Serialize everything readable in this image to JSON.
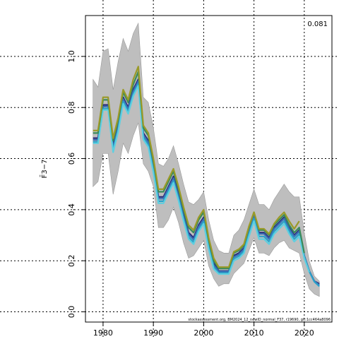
{
  "chart_data": {
    "type": "line",
    "ylabel": "F̄3−7",
    "xlim": [
      1976.5,
      2025.5
    ],
    "ylim": [
      -0.04,
      1.16
    ],
    "x_ticks": [
      1980,
      1990,
      2000,
      2010,
      2020
    ],
    "y_ticks": [
      0.0,
      0.2,
      0.4,
      0.6,
      0.8,
      1.0
    ],
    "x_tick_labels": [
      "1980",
      "1990",
      "2000",
      "2010",
      "2020"
    ],
    "y_tick_labels": [
      "0.0",
      "0.2",
      "0.4",
      "0.6",
      "0.8",
      "1.0"
    ],
    "grid": true,
    "corner_text": "0.081",
    "footnote": "stockassessment.org, BM2024_12_newID_normal_F37, r19690, git:1cc464a8096",
    "band": {
      "color": "#bebebe",
      "x": [
        1978,
        1979,
        1980,
        1981,
        1982,
        1983,
        1984,
        1985,
        1986,
        1987,
        1988,
        1989,
        1990,
        1991,
        1992,
        1993,
        1994,
        1995,
        1996,
        1997,
        1998,
        1999,
        2000,
        2001,
        2002,
        2003,
        2004,
        2005,
        2006,
        2007,
        2008,
        2009,
        2010,
        2011,
        2012,
        2013,
        2014,
        2015,
        2016,
        2017,
        2018,
        2019,
        2020,
        2021,
        2022,
        2023
      ],
      "upper": [
        0.91,
        0.88,
        1.02,
        1.03,
        0.87,
        0.98,
        1.07,
        1.02,
        1.09,
        1.13,
        0.84,
        0.82,
        0.72,
        0.58,
        0.57,
        0.6,
        0.65,
        0.58,
        0.5,
        0.43,
        0.42,
        0.44,
        0.47,
        0.36,
        0.28,
        0.24,
        0.23,
        0.23,
        0.3,
        0.32,
        0.36,
        0.42,
        0.48,
        0.42,
        0.42,
        0.4,
        0.44,
        0.47,
        0.5,
        0.47,
        0.45,
        0.45,
        0.31,
        0.2,
        0.14,
        0.12
      ],
      "lower": [
        0.49,
        0.51,
        0.62,
        0.62,
        0.46,
        0.55,
        0.66,
        0.62,
        0.69,
        0.74,
        0.58,
        0.55,
        0.49,
        0.33,
        0.33,
        0.36,
        0.41,
        0.35,
        0.27,
        0.21,
        0.22,
        0.25,
        0.28,
        0.18,
        0.13,
        0.1,
        0.11,
        0.11,
        0.15,
        0.17,
        0.19,
        0.24,
        0.29,
        0.23,
        0.23,
        0.22,
        0.25,
        0.27,
        0.28,
        0.25,
        0.24,
        0.23,
        0.15,
        0.09,
        0.07,
        0.06
      ]
    },
    "series": [
      {
        "color": "#282878",
        "x": [
          1978,
          1979,
          1980,
          1981,
          1982,
          1983,
          1984,
          1985,
          1986,
          1987,
          1988,
          1989,
          1990,
          1991,
          1992,
          1993,
          1994,
          1995,
          1996,
          1997,
          1998,
          1999,
          2000,
          2001,
          2002,
          2003,
          2004,
          2005,
          2006,
          2007,
          2008,
          2009,
          2010,
          2011,
          2012,
          2013,
          2014,
          2015,
          2016,
          2017,
          2018,
          2019,
          2020,
          2021,
          2022,
          2023
        ],
        "y": [
          0.68,
          0.68,
          0.81,
          0.81,
          0.65,
          0.73,
          0.84,
          0.8,
          0.87,
          0.91,
          0.7,
          0.67,
          0.57,
          0.45,
          0.45,
          0.49,
          0.53,
          0.46,
          0.38,
          0.31,
          0.29,
          0.34,
          0.37,
          0.27,
          0.19,
          0.16,
          0.16,
          0.16,
          0.22,
          0.23,
          0.25,
          0.32,
          0.38,
          0.31,
          0.31,
          0.29,
          0.33,
          0.35,
          0.37,
          0.33,
          0.3,
          0.32,
          0.22,
          0.16,
          0.12,
          0.11
        ]
      },
      {
        "color": "#3b70b5",
        "x": [
          1978,
          1979,
          1980,
          1981,
          1982,
          1983,
          1984,
          1985,
          1986,
          1987,
          1988,
          1989,
          1990,
          1991,
          1992,
          1993,
          1994,
          1995,
          1996,
          1997,
          1998,
          1999,
          2000,
          2001,
          2002,
          2003,
          2004,
          2005,
          2006,
          2007,
          2008,
          2009,
          2010,
          2011,
          2012,
          2013,
          2014,
          2015,
          2016,
          2017,
          2018,
          2019,
          2020,
          2021,
          2022,
          2023
        ],
        "y": [
          0.673,
          0.673,
          0.803,
          0.805,
          0.643,
          0.723,
          0.833,
          0.793,
          0.863,
          0.903,
          0.693,
          0.663,
          0.563,
          0.443,
          0.443,
          0.483,
          0.523,
          0.453,
          0.373,
          0.303,
          0.283,
          0.333,
          0.363,
          0.263,
          0.183,
          0.158,
          0.158,
          0.158,
          0.215,
          0.225,
          0.245,
          0.315,
          0.375,
          0.305,
          0.305,
          0.285,
          0.325,
          0.345,
          0.365,
          0.325,
          0.295,
          0.315,
          0.22,
          0.16,
          0.12,
          0.105
        ]
      },
      {
        "color": "#2aa1c9",
        "x": [
          1978,
          1979,
          1980,
          1981,
          1982,
          1983,
          1984,
          1985,
          1986,
          1987,
          1988,
          1989,
          1990,
          1991,
          1992,
          1993,
          1994,
          1995,
          1996,
          1997,
          1998,
          1999,
          2000,
          2001,
          2002,
          2003,
          2004,
          2005,
          2006,
          2007,
          2008,
          2009,
          2010,
          2011,
          2012,
          2013,
          2014,
          2015,
          2016,
          2017,
          2018,
          2019,
          2020,
          2021,
          2022,
          2023
        ],
        "y": [
          0.665,
          0.665,
          0.795,
          0.797,
          0.633,
          0.713,
          0.823,
          0.783,
          0.853,
          0.893,
          0.683,
          0.653,
          0.553,
          0.433,
          0.433,
          0.473,
          0.513,
          0.443,
          0.363,
          0.293,
          0.273,
          0.323,
          0.353,
          0.253,
          0.175,
          0.152,
          0.152,
          0.152,
          0.208,
          0.218,
          0.238,
          0.305,
          0.365,
          0.295,
          0.295,
          0.275,
          0.315,
          0.335,
          0.355,
          0.315,
          0.285,
          0.305,
          0.215,
          0.158,
          0.118,
          0.1
        ]
      },
      {
        "color": "#5dcfe0",
        "x": [
          1978,
          1979,
          1980,
          1981,
          1982,
          1983,
          1984,
          1985,
          1986,
          1987,
          1988,
          1989,
          1990,
          1991,
          1992,
          1993,
          1994,
          1995,
          1996,
          1997,
          1998,
          1999,
          2000,
          2001,
          2002,
          2003,
          2004,
          2005,
          2006,
          2007,
          2008,
          2009,
          2010,
          2011,
          2012,
          2013,
          2014,
          2015,
          2016,
          2017,
          2018,
          2019,
          2020,
          2021
        ],
        "y": [
          0.66,
          0.66,
          0.79,
          0.79,
          0.625,
          0.705,
          0.815,
          0.775,
          0.845,
          0.885,
          0.675,
          0.645,
          0.545,
          0.425,
          0.425,
          0.465,
          0.505,
          0.435,
          0.355,
          0.285,
          0.265,
          0.315,
          0.345,
          0.245,
          0.168,
          0.148,
          0.148,
          0.148,
          0.2,
          0.21,
          0.23,
          0.295,
          0.355,
          0.285,
          0.285,
          0.265,
          0.305,
          0.325,
          0.345,
          0.305,
          0.275,
          0.295,
          0.21,
          0.155
        ]
      },
      {
        "color": "#3a8a5a",
        "x": [
          1978,
          1979,
          1980,
          1981,
          1982,
          1983,
          1984,
          1985,
          1986,
          1987,
          1988,
          1989,
          1990,
          1991,
          1992,
          1993,
          1994,
          1995,
          1996,
          1997,
          1998,
          1999,
          2000,
          2001,
          2002,
          2003,
          2004,
          2005,
          2006,
          2007,
          2008,
          2009,
          2010,
          2011,
          2012,
          2013,
          2014,
          2015,
          2016,
          2017,
          2018,
          2019,
          2020
        ],
        "y": [
          0.7,
          0.7,
          0.83,
          0.83,
          0.67,
          0.75,
          0.86,
          0.82,
          0.89,
          0.94,
          0.72,
          0.69,
          0.59,
          0.47,
          0.47,
          0.51,
          0.55,
          0.48,
          0.4,
          0.33,
          0.31,
          0.36,
          0.39,
          0.28,
          0.2,
          0.17,
          0.17,
          0.17,
          0.23,
          0.24,
          0.26,
          0.33,
          0.39,
          0.32,
          0.32,
          0.3,
          0.34,
          0.36,
          0.38,
          0.34,
          0.31,
          0.33,
          0.23
        ]
      },
      {
        "color": "#9a9a28",
        "x": [
          1978,
          1979,
          1980,
          1981,
          1982,
          1983,
          1984,
          1985,
          1986,
          1987,
          1988,
          1989,
          1990,
          1991,
          1992,
          1993,
          1994,
          1995,
          1996,
          1997,
          1998,
          1999,
          2000,
          2001,
          2002,
          2003,
          2004,
          2005,
          2006,
          2007,
          2008,
          2009,
          2010,
          2011,
          2012,
          2013,
          2014,
          2015,
          2016,
          2017,
          2018,
          2019
        ],
        "y": [
          0.71,
          0.71,
          0.84,
          0.84,
          0.68,
          0.76,
          0.87,
          0.83,
          0.91,
          0.96,
          0.73,
          0.7,
          0.6,
          0.48,
          0.48,
          0.52,
          0.56,
          0.49,
          0.41,
          0.34,
          0.32,
          0.37,
          0.4,
          0.29,
          0.21,
          0.175,
          0.175,
          0.175,
          0.235,
          0.245,
          0.265,
          0.335,
          0.39,
          0.325,
          0.325,
          0.305,
          0.345,
          0.37,
          0.39,
          0.355,
          0.325,
          0.355
        ]
      }
    ]
  }
}
